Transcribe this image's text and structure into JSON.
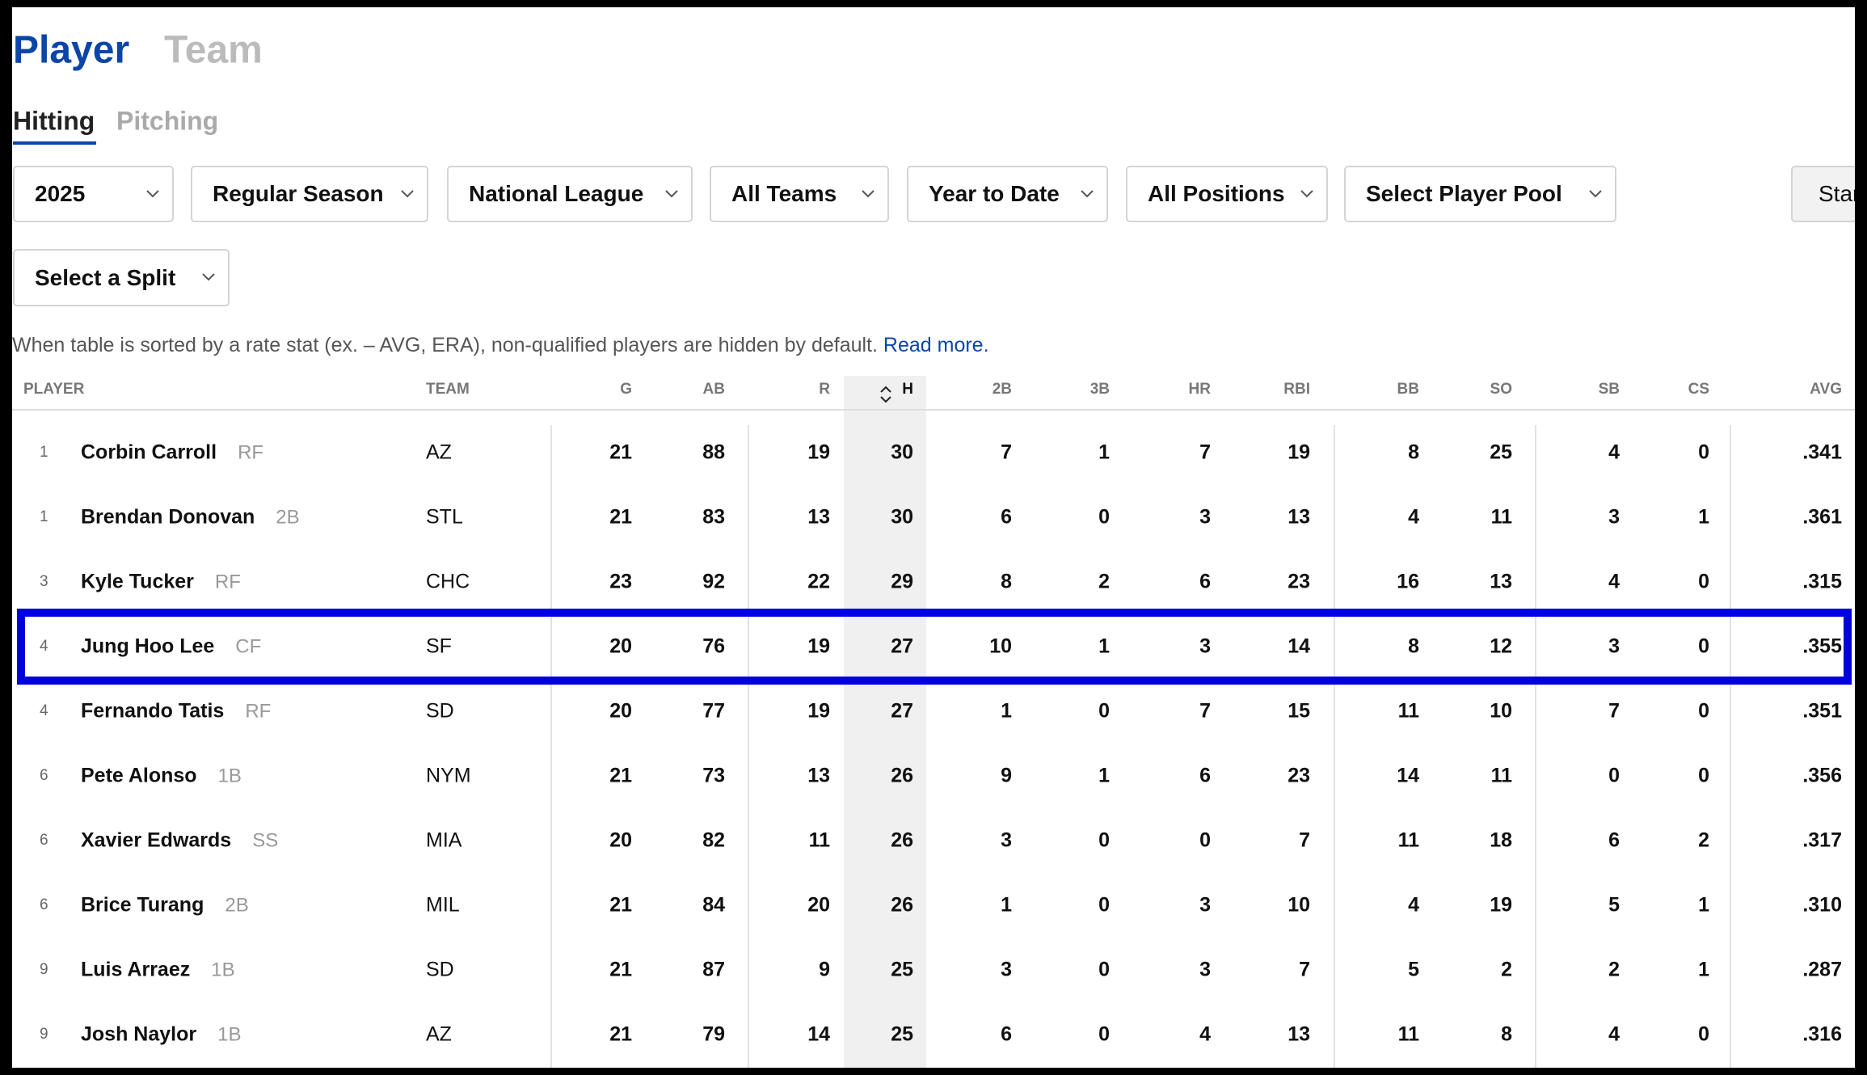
{
  "tabs": {
    "main": [
      "Player",
      "Team"
    ],
    "sub": [
      "Hitting",
      "Pitching"
    ]
  },
  "filters": [
    "2025",
    "Regular Season",
    "National League",
    "All Teams",
    "Year to Date",
    "All Positions",
    "Select Player Pool"
  ],
  "button": "Star",
  "split": "Select a Split",
  "note": {
    "text": "When table is sorted by a rate stat (ex. – AVG, ERA), non-qualified players are hidden by default.",
    "link": "Read more."
  },
  "table": {
    "headers": [
      "PLAYER",
      "TEAM",
      "G",
      "AB",
      "R",
      "H",
      "2B",
      "3B",
      "HR",
      "RBI",
      "BB",
      "SO",
      "SB",
      "CS",
      "AVG"
    ],
    "rows": [
      {
        "rank": 1,
        "name": "Corbin Carroll",
        "position": "RF",
        "team": "AZ",
        "stats": [
          21,
          88,
          19,
          30,
          7,
          1,
          7,
          19,
          8,
          25,
          4,
          0,
          ".341"
        ]
      },
      {
        "rank": 1,
        "name": "Brendan Donovan",
        "position": "2B",
        "team": "STL",
        "stats": [
          21,
          83,
          13,
          30,
          6,
          0,
          3,
          13,
          4,
          11,
          3,
          1,
          ".361"
        ]
      },
      {
        "rank": 3,
        "name": "Kyle Tucker",
        "position": "RF",
        "team": "CHC",
        "stats": [
          23,
          92,
          22,
          29,
          8,
          2,
          6,
          23,
          16,
          13,
          4,
          0,
          ".315"
        ]
      },
      {
        "rank": 4,
        "name": "Jung Hoo Lee",
        "position": "CF",
        "team": "SF",
        "stats": [
          20,
          76,
          19,
          27,
          10,
          1,
          3,
          14,
          8,
          12,
          3,
          0,
          ".355"
        ]
      },
      {
        "rank": 4,
        "name": "Fernando Tatis",
        "position": "RF",
        "team": "SD",
        "stats": [
          20,
          77,
          19,
          27,
          1,
          0,
          7,
          15,
          11,
          10,
          7,
          0,
          ".351"
        ]
      },
      {
        "rank": 6,
        "name": "Pete Alonso",
        "position": "1B",
        "team": "NYM",
        "stats": [
          21,
          73,
          13,
          26,
          9,
          1,
          6,
          23,
          14,
          11,
          0,
          0,
          ".356"
        ]
      },
      {
        "rank": 6,
        "name": "Xavier Edwards",
        "position": "SS",
        "team": "MIA",
        "stats": [
          20,
          82,
          11,
          26,
          3,
          0,
          0,
          7,
          11,
          18,
          6,
          2,
          ".317"
        ]
      },
      {
        "rank": 6,
        "name": "Brice Turang",
        "position": "2B",
        "team": "MIL",
        "stats": [
          21,
          84,
          20,
          26,
          1,
          0,
          3,
          10,
          4,
          19,
          5,
          1,
          ".310"
        ]
      },
      {
        "rank": 9,
        "name": "Luis Arraez",
        "position": "1B",
        "team": "SD",
        "stats": [
          21,
          87,
          9,
          25,
          3,
          0,
          3,
          7,
          5,
          2,
          2,
          1,
          ".287"
        ]
      },
      {
        "rank": 9,
        "name": "Josh Naylor",
        "position": "1B",
        "team": "AZ",
        "stats": [
          21,
          79,
          14,
          25,
          6,
          0,
          4,
          13,
          11,
          8,
          4,
          0,
          ".316"
        ]
      }
    ]
  }
}
